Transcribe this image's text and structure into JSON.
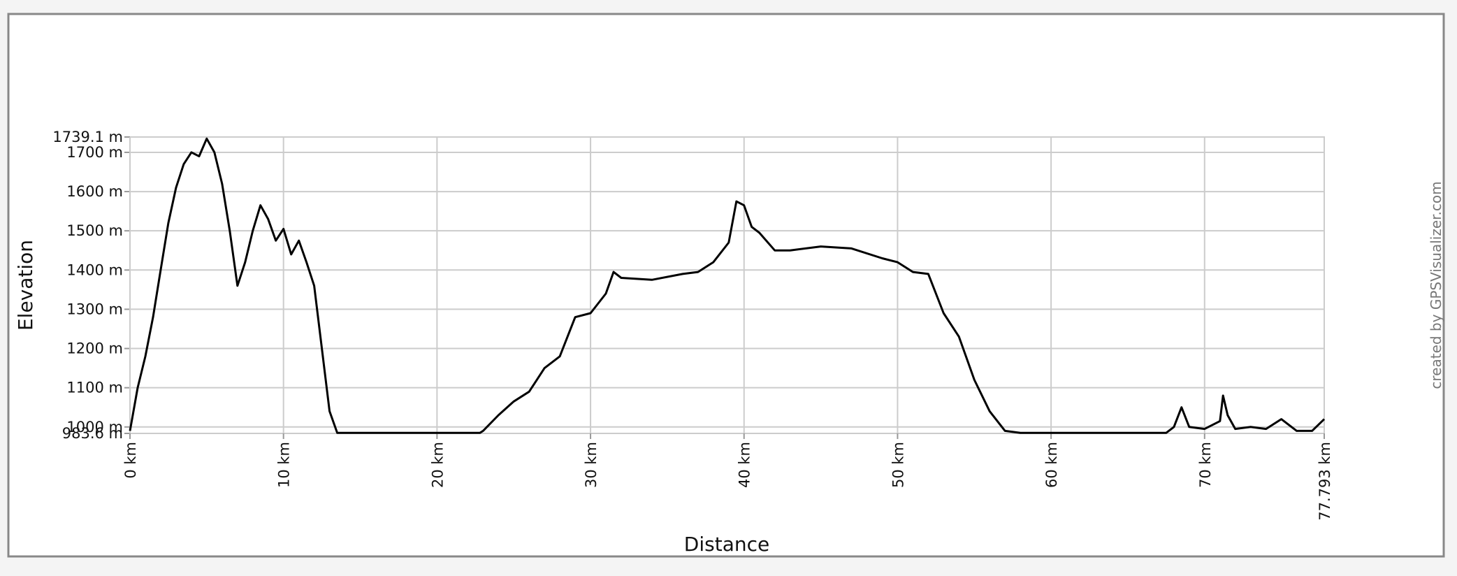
{
  "chart_data": {
    "type": "line",
    "xlabel": "Distance",
    "ylabel": "Elevation",
    "credit": "created by GPSVisualizer.com",
    "color": "#000000",
    "grid": true,
    "x": [
      0,
      0.5,
      1,
      1.5,
      2,
      2.5,
      3,
      3.5,
      4,
      4.5,
      5,
      5.5,
      6,
      6.5,
      7,
      7.5,
      8,
      8.5,
      9,
      9.5,
      10,
      10.5,
      11,
      11.5,
      12,
      12.5,
      13,
      13.5,
      22.8,
      23,
      24,
      25,
      26,
      27,
      28,
      29,
      30,
      31,
      31.5,
      32,
      34,
      36,
      37,
      38,
      39,
      39.5,
      40,
      40.5,
      41,
      42,
      43,
      45,
      47,
      49,
      50,
      51,
      52,
      53,
      54,
      55,
      56,
      57,
      58,
      67.5,
      68,
      68.5,
      69,
      70,
      71,
      71.2,
      71.5,
      72,
      73,
      74,
      75,
      76,
      77,
      77.793
    ],
    "values": [
      990,
      1100,
      1180,
      1280,
      1400,
      1520,
      1610,
      1670,
      1700,
      1690,
      1735,
      1700,
      1620,
      1500,
      1360,
      1420,
      1500,
      1565,
      1530,
      1475,
      1505,
      1440,
      1475,
      1420,
      1360,
      1200,
      1040,
      985,
      985,
      990,
      1030,
      1065,
      1090,
      1150,
      1180,
      1280,
      1290,
      1340,
      1395,
      1380,
      1375,
      1390,
      1395,
      1420,
      1470,
      1575,
      1565,
      1510,
      1495,
      1450,
      1450,
      1460,
      1455,
      1430,
      1420,
      1395,
      1390,
      1290,
      1230,
      1120,
      1040,
      990,
      985,
      985,
      1000,
      1050,
      1000,
      995,
      1015,
      1080,
      1030,
      995,
      1000,
      995,
      1020,
      990,
      990,
      1020
    ],
    "xlim": [
      0,
      77.793
    ],
    "ylim": [
      983.6,
      1739.1
    ],
    "xticks": [
      {
        "value": 0,
        "label": "0 km"
      },
      {
        "value": 10,
        "label": "10 km"
      },
      {
        "value": 20,
        "label": "20 km"
      },
      {
        "value": 30,
        "label": "30 km"
      },
      {
        "value": 40,
        "label": "40 km"
      },
      {
        "value": 50,
        "label": "50 km"
      },
      {
        "value": 60,
        "label": "60 km"
      },
      {
        "value": 70,
        "label": "70 km"
      },
      {
        "value": 77.793,
        "label": "77.793 km"
      }
    ],
    "yticks": [
      {
        "value": 983.6,
        "label": "983.6 m"
      },
      {
        "value": 1000,
        "label": "1000 m"
      },
      {
        "value": 1100,
        "label": "1100 m"
      },
      {
        "value": 1200,
        "label": "1200 m"
      },
      {
        "value": 1300,
        "label": "1300 m"
      },
      {
        "value": 1400,
        "label": "1400 m"
      },
      {
        "value": 1500,
        "label": "1500 m"
      },
      {
        "value": 1600,
        "label": "1600 m"
      },
      {
        "value": 1700,
        "label": "1700 m"
      },
      {
        "value": 1739.1,
        "label": "1739.1 m"
      }
    ]
  }
}
